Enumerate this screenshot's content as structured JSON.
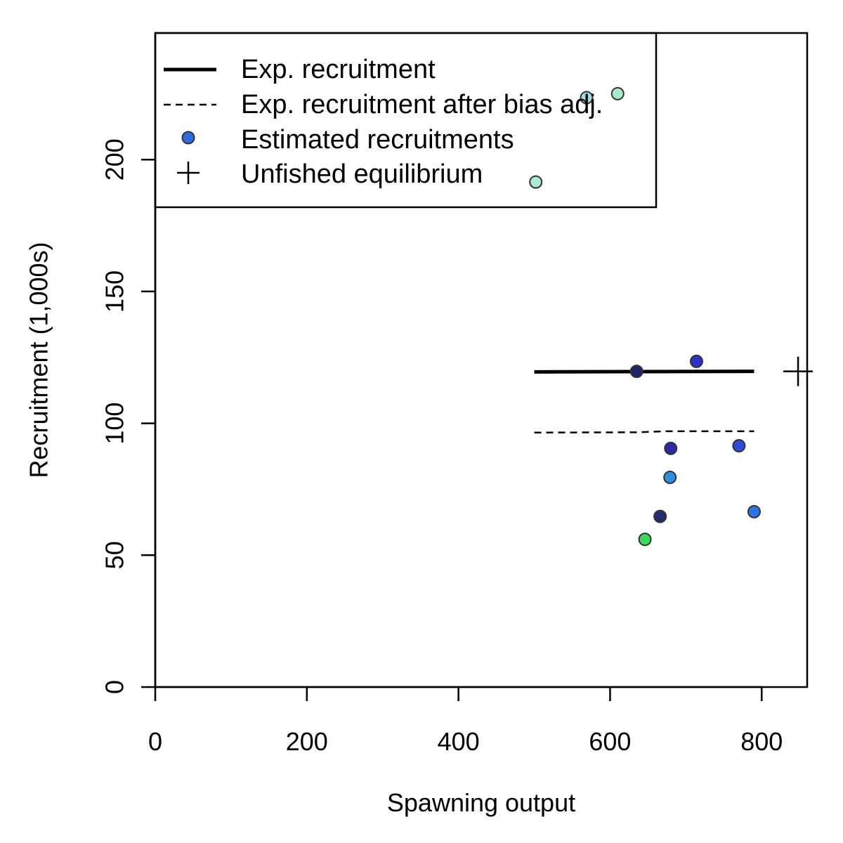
{
  "chart_data": {
    "type": "scatter",
    "xlabel": "Spawning output",
    "ylabel": "Recruitment (1,000s)",
    "xlim": [
      0,
      860
    ],
    "ylim": [
      0,
      248
    ],
    "x_ticks": [
      0,
      200,
      400,
      600,
      800
    ],
    "x_tick_labels": [
      "0",
      "200",
      "400",
      "600",
      "800"
    ],
    "y_ticks": [
      0,
      50,
      100,
      150,
      200
    ],
    "y_tick_labels": [
      "0",
      "50",
      "100",
      "150",
      "200"
    ],
    "grid": false,
    "legend_position": "top-left",
    "legend": [
      {
        "label": "Exp. recruitment",
        "symbol": "solid-line"
      },
      {
        "label": "Exp. recruitment after bias adj.",
        "symbol": "dashed-line"
      },
      {
        "label": "Estimated recruitments",
        "symbol": "filled-circle"
      },
      {
        "label": "Unfished equilibrium",
        "symbol": "plus"
      }
    ],
    "series": [
      {
        "name": "Exp. recruitment",
        "kind": "line",
        "style": "solid",
        "color": "#000000",
        "x": [
          500,
          635,
          790
        ],
        "y": [
          119.5,
          119.6,
          119.7
        ]
      },
      {
        "name": "Exp. recruitment after bias adj.",
        "kind": "line",
        "style": "dashed",
        "color": "#000000",
        "x": [
          500,
          635,
          672,
          790
        ],
        "y": [
          96.5,
          96.6,
          97.0,
          97.0
        ]
      },
      {
        "name": "Estimated recruitments",
        "kind": "points",
        "points": [
          {
            "x": 635,
            "y": 119.7,
            "color": "#1e2468"
          },
          {
            "x": 714,
            "y": 123.5,
            "color": "#2f2fc9"
          },
          {
            "x": 680,
            "y": 90.5,
            "color": "#2a2aa8"
          },
          {
            "x": 770,
            "y": 91.5,
            "color": "#2a4be0"
          },
          {
            "x": 679,
            "y": 79.5,
            "color": "#2e8fe0"
          },
          {
            "x": 790,
            "y": 66.5,
            "color": "#2a73e8"
          },
          {
            "x": 666,
            "y": 64.7,
            "color": "#252b6e"
          },
          {
            "x": 646,
            "y": 56.0,
            "color": "#33dd55"
          },
          {
            "x": 569,
            "y": 223.5,
            "color": "#9fdde8"
          },
          {
            "x": 610,
            "y": 225.0,
            "color": "#a6ecc8"
          },
          {
            "x": 502,
            "y": 191.5,
            "color": "#a6ecd2"
          }
        ]
      },
      {
        "name": "Unfished equilibrium",
        "kind": "plus",
        "color": "#000000",
        "x": [
          848
        ],
        "y": [
          119.7
        ]
      }
    ]
  }
}
